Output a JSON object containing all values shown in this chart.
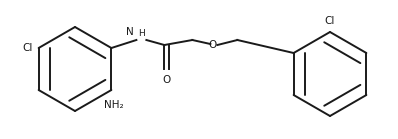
{
  "bg_color": "#ffffff",
  "line_color": "#1a1a1a",
  "line_width": 1.4,
  "figsize": [
    3.98,
    1.39
  ],
  "dpi": 100,
  "xlim": [
    0,
    398
  ],
  "ylim": [
    0,
    139
  ]
}
